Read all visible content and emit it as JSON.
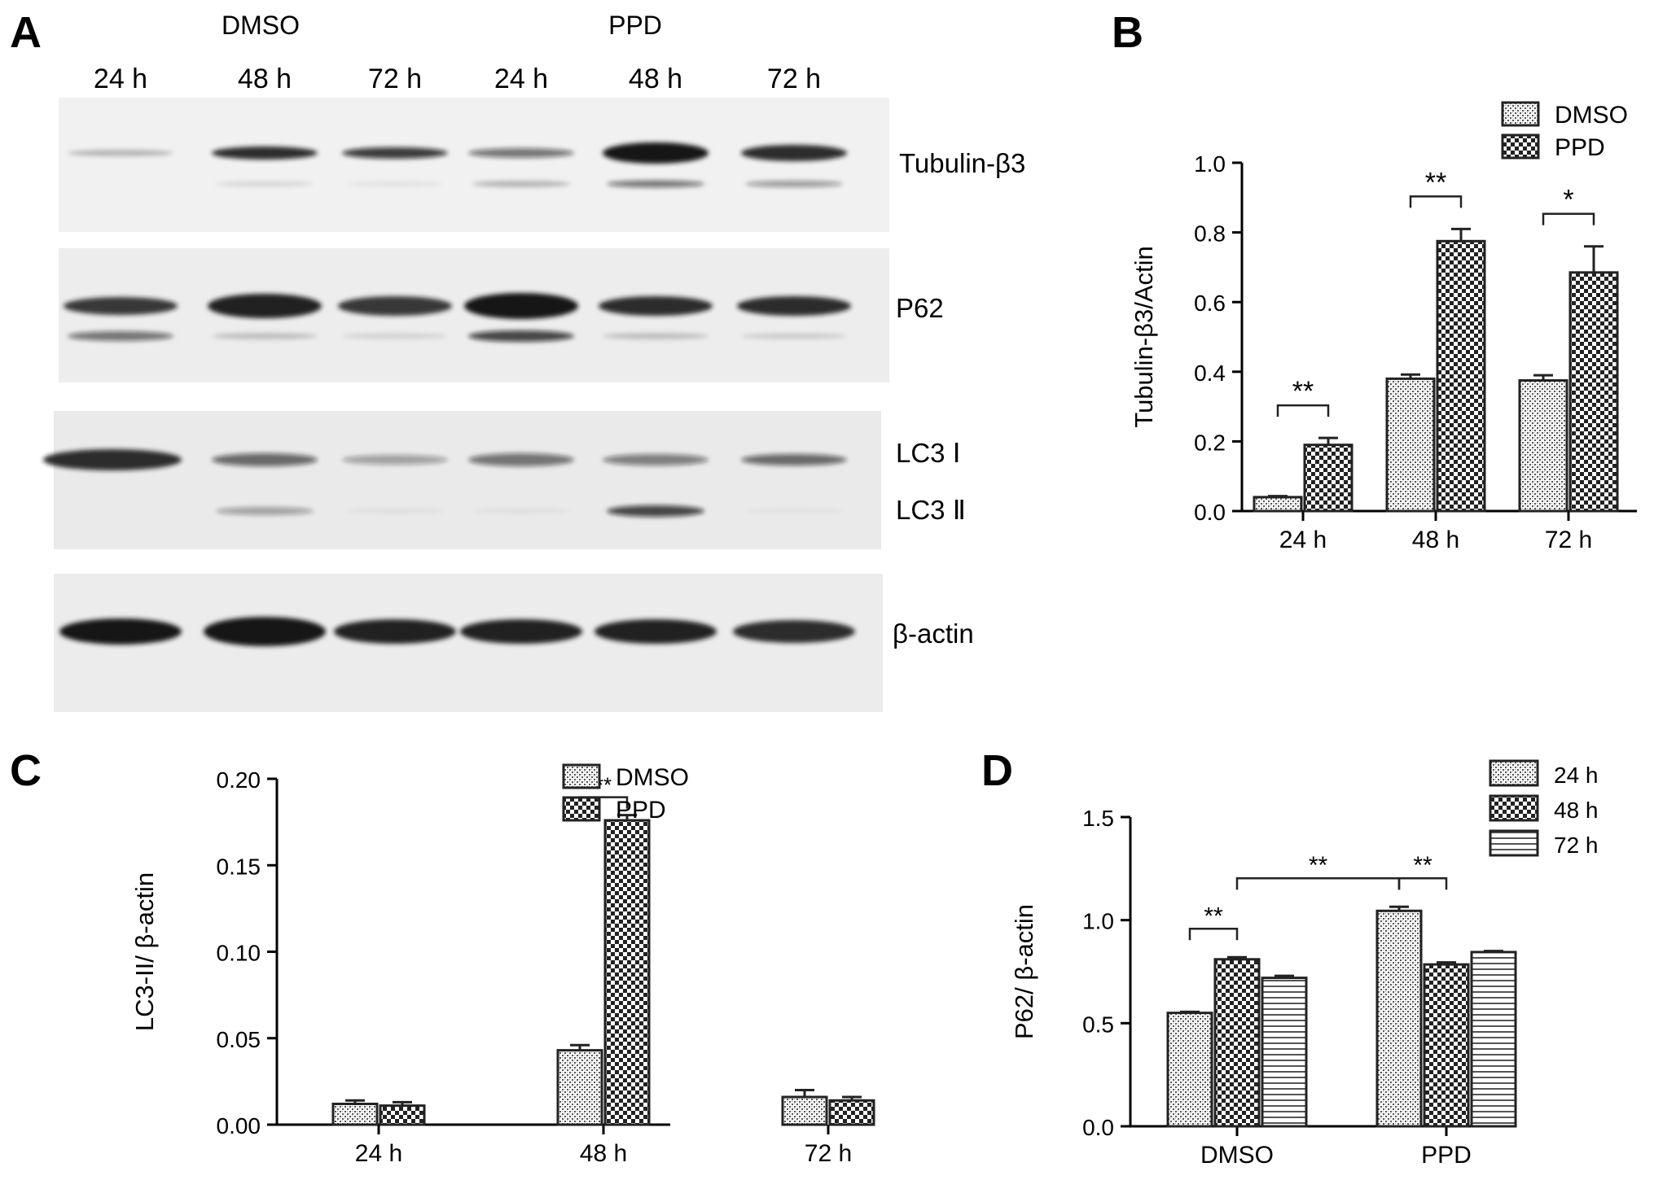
{
  "panels": {
    "A": {
      "letter": "A",
      "groups": [
        "DMSO",
        "PPD"
      ],
      "lanes": [
        "24 h",
        "48 h",
        "72 h",
        "24 h",
        "48 h",
        "72 h"
      ],
      "blots": [
        {
          "label": "Tubulin-β3"
        },
        {
          "label": "P62"
        },
        {
          "label_top": "LC3 Ⅰ",
          "label_bottom": "LC3 Ⅱ"
        },
        {
          "label": "β-actin"
        }
      ]
    },
    "B": {
      "letter": "B"
    },
    "C": {
      "letter": "C"
    },
    "D": {
      "letter": "D"
    }
  },
  "chart_data": [
    {
      "panel": "B",
      "type": "bar",
      "categories": [
        "24 h",
        "48 h",
        "72 h"
      ],
      "ylabel": "Tubulin-β3/Actin",
      "ylim": [
        0,
        1.0
      ],
      "yticks": [
        "0.0",
        "0.2",
        "0.4",
        "0.6",
        "0.8",
        "1.0"
      ],
      "legend": "top-right",
      "series": [
        {
          "name": "DMSO",
          "values": [
            0.04,
            0.38,
            0.375
          ],
          "errors": [
            0.003,
            0.012,
            0.015
          ],
          "pattern": "fine"
        },
        {
          "name": "PPD",
          "values": [
            0.19,
            0.775,
            0.685
          ],
          "errors": [
            0.02,
            0.035,
            0.075
          ],
          "pattern": "check"
        }
      ],
      "significance": [
        {
          "category": 0,
          "label": "**"
        },
        {
          "category": 1,
          "label": "**"
        },
        {
          "category": 2,
          "label": "*"
        }
      ]
    },
    {
      "panel": "C",
      "type": "bar",
      "categories": [
        "24 h",
        "48 h",
        "72 h"
      ],
      "ylabel": "LC3-II/ β-actin",
      "ylim": [
        0,
        0.2
      ],
      "yticks": [
        "0.00",
        "0.05",
        "0.10",
        "0.15",
        "0.20"
      ],
      "legend": "top-right",
      "series": [
        {
          "name": "DMSO",
          "values": [
            0.012,
            0.043,
            0.016
          ],
          "errors": [
            0.002,
            0.003,
            0.004
          ],
          "pattern": "fine"
        },
        {
          "name": "PPD",
          "values": [
            0.011,
            0.176,
            0.014
          ],
          "errors": [
            0.002,
            0.003,
            0.002
          ],
          "pattern": "check"
        }
      ],
      "significance": [
        {
          "category": 1,
          "label": "**"
        }
      ]
    },
    {
      "panel": "D",
      "type": "bar",
      "categories": [
        "DMSO",
        "PPD"
      ],
      "ylabel": "P62/ β-actin",
      "ylim": [
        0,
        1.5
      ],
      "yticks": [
        "0.0",
        "0.5",
        "1.0",
        "1.5"
      ],
      "legend": "top-right",
      "series": [
        {
          "name": "24 h",
          "values": [
            0.55,
            1.045
          ],
          "errors": [
            0.005,
            0.02
          ],
          "pattern": "fine"
        },
        {
          "name": "48 h",
          "values": [
            0.81,
            0.785
          ],
          "errors": [
            0.01,
            0.01
          ],
          "pattern": "check"
        },
        {
          "name": "72 h",
          "values": [
            0.72,
            0.845
          ],
          "errors": [
            0.01,
            0.005
          ],
          "pattern": "hline"
        }
      ],
      "significance": [
        {
          "from": [
            0,
            0
          ],
          "to": [
            0,
            1
          ],
          "label": "**"
        },
        {
          "from": [
            0,
            1
          ],
          "to": [
            1,
            0
          ],
          "label": "**"
        },
        {
          "from": [
            1,
            0
          ],
          "to": [
            1,
            1
          ],
          "label": "**"
        }
      ]
    }
  ]
}
